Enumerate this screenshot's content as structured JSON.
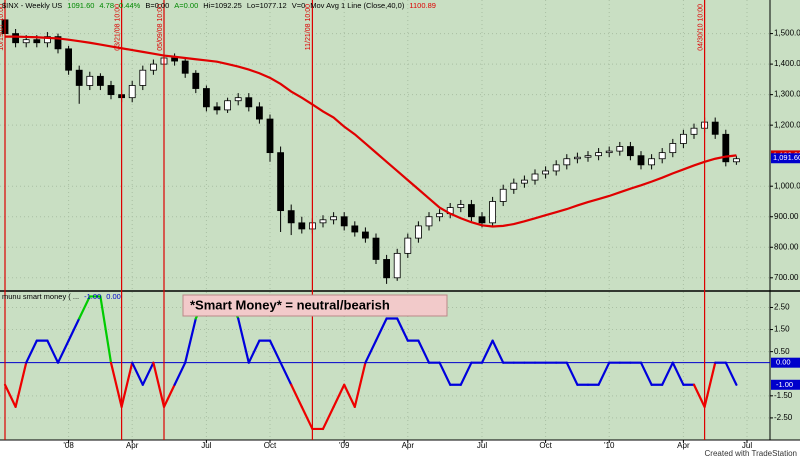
{
  "footer": "Created with TradeStation",
  "chart_data": [
    {
      "type": "candlestick",
      "header": [
        {
          "text": "$INX - Weekly  US",
          "color": "#000000"
        },
        {
          "text": "1091.60",
          "color": "#008800"
        },
        {
          "text": "4.78",
          "color": "#008800"
        },
        {
          "text": "0.44%",
          "color": "#008800"
        },
        {
          "text": "B=0.00",
          "color": "#000000"
        },
        {
          "text": "A=0.00",
          "color": "#008800"
        },
        {
          "text": "Hi=1092.25",
          "color": "#000000"
        },
        {
          "text": "Lo=1077.12",
          "color": "#000000"
        },
        {
          "text": "V=0",
          "color": "#000000"
        },
        {
          "text": "Mov Avg 1 Line (Close,40,0)",
          "color": "#000000"
        },
        {
          "text": "1100.89",
          "color": "#dd0000"
        }
      ],
      "categories": [
        null,
        null,
        null,
        null,
        null,
        null,
        "'08",
        null,
        null,
        null,
        null,
        null,
        "Apr",
        null,
        null,
        null,
        null,
        null,
        null,
        "Jul",
        null,
        null,
        null,
        null,
        null,
        "Oct",
        null,
        null,
        null,
        null,
        null,
        null,
        "'09",
        null,
        null,
        null,
        null,
        null,
        "Apr",
        null,
        null,
        null,
        null,
        null,
        null,
        "Jul",
        null,
        null,
        null,
        null,
        null,
        "Oct",
        null,
        null,
        null,
        null,
        null,
        "'10",
        null,
        null,
        null,
        null,
        null,
        null,
        "Apr",
        null,
        null,
        null,
        null,
        null,
        "Jul"
      ],
      "open": [
        1545,
        1500,
        1470,
        1480,
        1470,
        1490,
        1450,
        1380,
        1330,
        1360,
        1330,
        1300,
        1290,
        1330,
        1380,
        1400,
        1420,
        1410,
        1370,
        1320,
        1260,
        1250,
        1280,
        1290,
        1260,
        1220,
        1110,
        920,
        880,
        860,
        880,
        890,
        900,
        870,
        850,
        830,
        760,
        700,
        780,
        830,
        870,
        900,
        910,
        930,
        940,
        900,
        880,
        950,
        990,
        1010,
        1020,
        1040,
        1050,
        1070,
        1090,
        1095,
        1100,
        1110,
        1115,
        1130,
        1100,
        1070,
        1090,
        1110,
        1140,
        1170,
        1190,
        1210,
        1170,
        1080,
        null
      ],
      "high": [
        1560,
        1515,
        1495,
        1495,
        1505,
        1500,
        1460,
        1395,
        1375,
        1370,
        1345,
        1315,
        1345,
        1395,
        1415,
        1435,
        1435,
        1420,
        1380,
        1330,
        1275,
        1290,
        1305,
        1305,
        1275,
        1235,
        1130,
        940,
        900,
        895,
        905,
        915,
        915,
        885,
        865,
        845,
        775,
        795,
        845,
        885,
        915,
        925,
        945,
        955,
        955,
        915,
        965,
        1005,
        1025,
        1035,
        1055,
        1065,
        1085,
        1105,
        1110,
        1115,
        1125,
        1130,
        1145,
        1145,
        1115,
        1105,
        1125,
        1155,
        1185,
        1205,
        1225,
        1225,
        1185,
        1100,
        null
      ],
      "low": [
        1485,
        1455,
        1455,
        1455,
        1455,
        1435,
        1365,
        1270,
        1315,
        1315,
        1285,
        1275,
        1275,
        1315,
        1365,
        1385,
        1395,
        1355,
        1305,
        1245,
        1235,
        1240,
        1265,
        1245,
        1205,
        1080,
        850,
        840,
        845,
        845,
        865,
        875,
        855,
        835,
        815,
        745,
        680,
        690,
        765,
        815,
        855,
        885,
        895,
        915,
        885,
        865,
        865,
        935,
        975,
        995,
        1005,
        1025,
        1035,
        1055,
        1075,
        1080,
        1085,
        1095,
        1100,
        1085,
        1055,
        1055,
        1075,
        1095,
        1125,
        1155,
        1175,
        1155,
        1065,
        1070,
        null
      ],
      "close": [
        1500,
        1470,
        1480,
        1470,
        1490,
        1450,
        1380,
        1330,
        1360,
        1330,
        1300,
        1290,
        1330,
        1380,
        1400,
        1420,
        1410,
        1370,
        1320,
        1260,
        1250,
        1280,
        1290,
        1260,
        1220,
        1110,
        920,
        880,
        860,
        880,
        890,
        900,
        870,
        850,
        830,
        760,
        700,
        780,
        830,
        870,
        900,
        910,
        930,
        940,
        900,
        880,
        950,
        990,
        1010,
        1020,
        1040,
        1050,
        1070,
        1090,
        1095,
        1100,
        1110,
        1115,
        1130,
        1100,
        1070,
        1090,
        1110,
        1140,
        1170,
        1190,
        1210,
        1170,
        1080,
        1090,
        null
      ],
      "up_color": "#ffffff",
      "down_color": "#000000",
      "overlay": {
        "color": "#e00000",
        "values": [
          1490,
          1490,
          1489,
          1488,
          1486,
          1484,
          1480,
          1475,
          1470,
          1464,
          1458,
          1452,
          1446,
          1440,
          1434,
          1428,
          1424,
          1420,
          1416,
          1412,
          1408,
          1400,
          1392,
          1382,
          1370,
          1355,
          1335,
          1310,
          1290,
          1268,
          1245,
          1225,
          1195,
          1170,
          1140,
          1110,
          1080,
          1050,
          1020,
          990,
          960,
          930,
          910,
          895,
          882,
          872,
          868,
          870,
          876,
          885,
          895,
          905,
          915,
          925,
          937,
          948,
          958,
          968,
          980,
          992,
          1003,
          1015,
          1028,
          1042,
          1055,
          1068,
          1080,
          1090,
          1097,
          1101,
          null
        ]
      },
      "ylim": [
        660,
        1610
      ],
      "yticks": [
        {
          "value": 1500,
          "label": "1,500.00"
        },
        {
          "value": 1400,
          "label": "1,400.00"
        },
        {
          "value": 1300,
          "label": "1,300.00"
        },
        {
          "value": 1200,
          "label": "1,200.00"
        },
        {
          "value": 1000,
          "label": "1,000.00"
        },
        {
          "value": 900,
          "label": "900.00"
        },
        {
          "value": 800,
          "label": "800.00"
        },
        {
          "value": 700,
          "label": "700.00"
        }
      ],
      "price_tags": [
        {
          "value": 1100.89,
          "label": "1,100.89",
          "color": "#cc0000"
        },
        {
          "value": 1091.6,
          "label": "1,091.60",
          "color": "#0000cc"
        }
      ],
      "events": [
        {
          "category": 0,
          "label": "10/19/07 10:00"
        },
        {
          "category": 11,
          "label": "03/21/08 10:00"
        },
        {
          "category": 15,
          "label": "05/09/08 10:00"
        },
        {
          "category": 29,
          "label": "11/21/08 10:00"
        },
        {
          "category": 66,
          "label": "04/30/10 10:00"
        }
      ],
      "grid": true
    },
    {
      "type": "line",
      "header": [
        {
          "text": "munu smart money ( ...",
          "color": "#000000"
        },
        {
          "text": "-1.00",
          "color": "#0000cc"
        },
        {
          "text": "0.00",
          "color": "#0000cc"
        }
      ],
      "annotation": "*Smart Money* = neutral/bearish",
      "values": [
        -1,
        -2,
        0,
        1,
        1,
        0,
        1,
        2,
        3,
        3,
        0,
        -2,
        0,
        -1,
        0,
        -2,
        -1,
        0,
        2,
        3,
        3,
        3,
        2,
        0,
        1,
        1,
        0,
        -1,
        -2,
        -3,
        -3,
        -2,
        -1,
        -2,
        0,
        1,
        2,
        2,
        1,
        1,
        0,
        0,
        -1,
        -1,
        0,
        0,
        1,
        0,
        0,
        0,
        0,
        0,
        0,
        0,
        -1,
        -1,
        -1,
        0,
        0,
        0,
        0,
        -1,
        -1,
        0,
        -1,
        -1,
        -2,
        0,
        0,
        -1,
        null
      ],
      "color": "#0000dd",
      "low_color": "#ee0000",
      "low_at": -2,
      "high_color": "#00cc00",
      "high_at": 3,
      "ylim": [
        -3.5,
        3.2
      ],
      "yticks": [
        {
          "value": 2.5,
          "label": "2.50"
        },
        {
          "value": 1.5,
          "label": "1.50"
        },
        {
          "value": 0.5,
          "label": "0.50"
        },
        {
          "value": -1.5,
          "label": "-1.50"
        },
        {
          "value": -2.5,
          "label": "-2.50"
        }
      ],
      "markers": [
        {
          "value": 0,
          "label": "0.00",
          "color": "#0000cc",
          "line": true
        },
        {
          "value": -1,
          "label": "-1.00",
          "color": "#0000cc",
          "line": false
        }
      ],
      "grid": true
    }
  ]
}
